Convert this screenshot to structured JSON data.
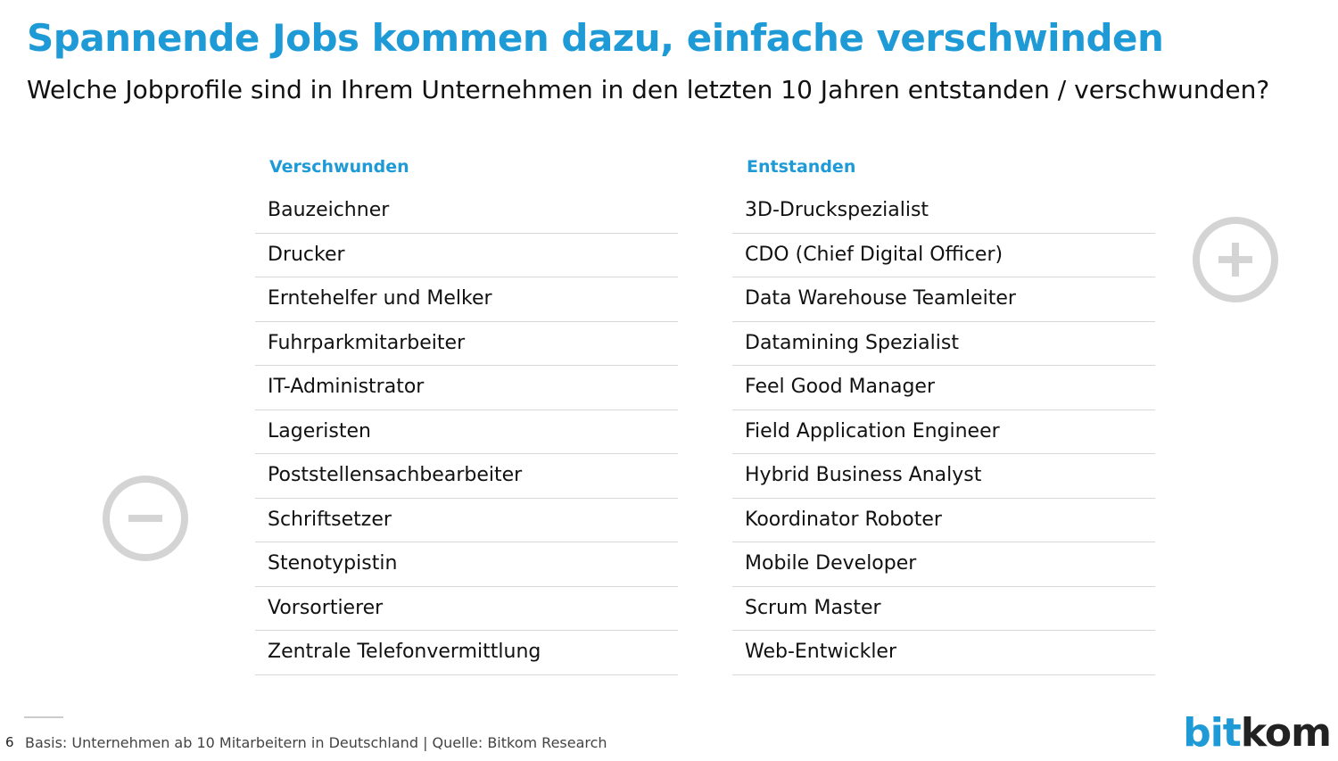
{
  "header": {
    "title": "Spannende Jobs kommen dazu, einfache verschwinden",
    "subtitle": "Welche Jobprofile sind in Ihrem Unternehmen in den letzten 10 Jahren entstanden / verschwunden?"
  },
  "columns": [
    {
      "heading": "Verschwunden",
      "items": [
        "Bauzeichner",
        "Drucker",
        "Erntehelfer und Melker",
        "Fuhrparkmitarbeiter",
        "IT-Administrator",
        "Lageristen",
        "Poststellensachbearbeiter",
        "Schriftsetzer",
        "Stenotypistin",
        "Vorsortierer",
        "Zentrale Telefonvermittlung"
      ]
    },
    {
      "heading": "Entstanden",
      "items": [
        "3D-Druckspezialist",
        "CDO (Chief Digital Officer)",
        "Data Warehouse Teamleiter",
        "Datamining Spezialist",
        "Feel Good Manager",
        "Field Application Engineer",
        "Hybrid Business Analyst",
        "Koordinator Roboter",
        "Mobile Developer",
        "Scrum Master",
        "Web-Entwickler"
      ]
    }
  ],
  "footer": {
    "page": "6",
    "source": "Basis: Unternehmen ab 10 Mitarbeitern in Deutschland | Quelle: Bitkom Research",
    "logo_part1": "bit",
    "logo_part2": "kom"
  }
}
